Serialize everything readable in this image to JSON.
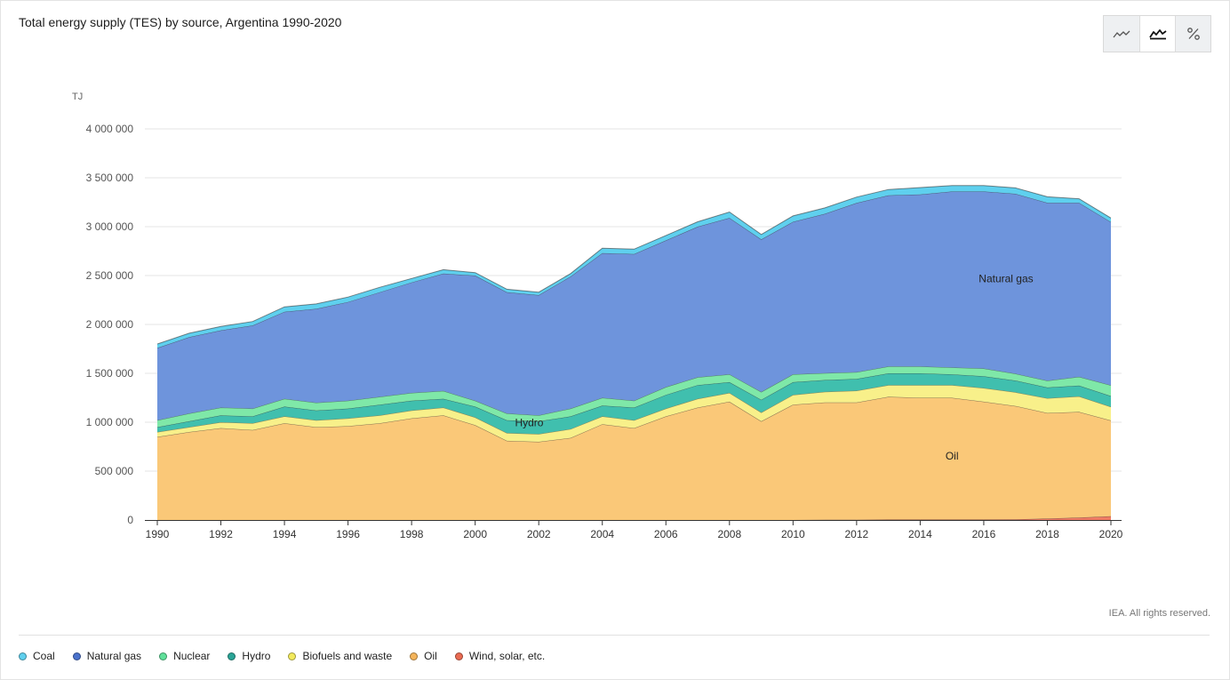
{
  "header": {
    "title": "Total energy supply (TES) by source, Argentina 1990-2020",
    "view_toggles": [
      {
        "icon": "line-chart-icon",
        "active": false
      },
      {
        "icon": "area-chart-icon",
        "active": true
      },
      {
        "icon": "percent-icon",
        "active": false
      }
    ]
  },
  "footer": {
    "credit": "IEA. All rights reserved."
  },
  "chart_data": {
    "type": "area",
    "stacked": true,
    "ylabel": "TJ",
    "ylim": [
      0,
      4000000
    ],
    "yticks": [
      0,
      500000,
      1000000,
      1500000,
      2000000,
      2500000,
      3000000,
      3500000,
      4000000
    ],
    "ytick_labels": [
      "0",
      "500 000",
      "1 000 000",
      "1 500 000",
      "2 000 000",
      "2 500 000",
      "3 000 000",
      "3 500 000",
      "4 000 000"
    ],
    "grid": true,
    "x": [
      1990,
      1991,
      1992,
      1993,
      1994,
      1995,
      1996,
      1997,
      1998,
      1999,
      2000,
      2001,
      2002,
      2003,
      2004,
      2005,
      2006,
      2007,
      2008,
      2009,
      2010,
      2011,
      2012,
      2013,
      2014,
      2015,
      2016,
      2017,
      2018,
      2019,
      2020
    ],
    "xticks": [
      1990,
      1992,
      1994,
      1996,
      1998,
      2000,
      2002,
      2004,
      2006,
      2008,
      2010,
      2012,
      2014,
      2016,
      2018,
      2020
    ],
    "xtick_labels": [
      "1990",
      "1992",
      "1994",
      "1996",
      "1998",
      "2000",
      "2002",
      "2004",
      "2006",
      "2008",
      "2010",
      "2012",
      "2014",
      "2016",
      "2018",
      "2020"
    ],
    "stack_order": [
      "Wind, solar, etc.",
      "Oil",
      "Biofuels and waste",
      "Hydro",
      "Nuclear",
      "Natural gas",
      "Coal"
    ],
    "series": [
      {
        "name": "Coal",
        "color": "#5fd0ee",
        "values": [
          40000,
          40000,
          40000,
          40000,
          50000,
          50000,
          50000,
          50000,
          40000,
          40000,
          30000,
          30000,
          30000,
          30000,
          50000,
          50000,
          50000,
          50000,
          60000,
          50000,
          60000,
          60000,
          60000,
          60000,
          70000,
          60000,
          60000,
          60000,
          60000,
          40000,
          40000
        ]
      },
      {
        "name": "Natural gas",
        "color": "#6e94dc",
        "values": [
          740000,
          780000,
          790000,
          850000,
          890000,
          960000,
          1010000,
          1070000,
          1130000,
          1200000,
          1280000,
          1240000,
          1230000,
          1350000,
          1480000,
          1500000,
          1500000,
          1540000,
          1600000,
          1560000,
          1560000,
          1630000,
          1730000,
          1750000,
          1760000,
          1800000,
          1810000,
          1840000,
          1820000,
          1780000,
          1670000
        ]
      },
      {
        "name": "Nuclear",
        "color": "#7fe8a8",
        "values": [
          70000,
          80000,
          80000,
          80000,
          80000,
          80000,
          80000,
          80000,
          80000,
          80000,
          60000,
          70000,
          60000,
          80000,
          80000,
          70000,
          80000,
          80000,
          80000,
          80000,
          80000,
          70000,
          70000,
          70000,
          70000,
          70000,
          80000,
          70000,
          70000,
          90000,
          110000
        ]
      },
      {
        "name": "Hydro",
        "color": "#40bfae",
        "values": [
          50000,
          60000,
          70000,
          70000,
          100000,
          100000,
          100000,
          110000,
          100000,
          90000,
          110000,
          130000,
          130000,
          130000,
          110000,
          130000,
          140000,
          140000,
          110000,
          130000,
          130000,
          120000,
          120000,
          120000,
          120000,
          110000,
          120000,
          120000,
          110000,
          110000,
          110000
        ]
      },
      {
        "name": "Biofuels and waste",
        "color": "#f8f08a",
        "values": [
          50000,
          50000,
          60000,
          70000,
          70000,
          70000,
          80000,
          80000,
          80000,
          80000,
          80000,
          80000,
          80000,
          90000,
          80000,
          80000,
          80000,
          90000,
          90000,
          90000,
          100000,
          110000,
          120000,
          120000,
          130000,
          130000,
          140000,
          140000,
          150000,
          160000,
          140000
        ]
      },
      {
        "name": "Oil",
        "color": "#fac878",
        "values": [
          850000,
          900000,
          940000,
          920000,
          990000,
          950000,
          960000,
          990000,
          1040000,
          1070000,
          970000,
          810000,
          800000,
          840000,
          980000,
          940000,
          1060000,
          1150000,
          1210000,
          1010000,
          1180000,
          1200000,
          1200000,
          1255000,
          1245000,
          1245000,
          1205000,
          1160000,
          1080000,
          1080000,
          980000
        ]
      },
      {
        "name": "Wind, solar, etc.",
        "color": "#f07c65",
        "values": [
          0,
          0,
          0,
          0,
          0,
          0,
          0,
          0,
          0,
          0,
          0,
          0,
          0,
          0,
          0,
          0,
          0,
          0,
          0,
          0,
          0,
          2000,
          3000,
          5000,
          5000,
          5000,
          5000,
          6000,
          15000,
          25000,
          38000
        ]
      }
    ],
    "annotations": [
      {
        "text": "Natural gas",
        "x": 2016.7,
        "y": 2430000
      },
      {
        "text": "Oil",
        "x": 2015,
        "y": 620000
      },
      {
        "text": "Hydro",
        "x": 2001.7,
        "y": 960000
      }
    ],
    "legend": {
      "position": "bottom-left",
      "items": [
        {
          "label": "Coal",
          "color": "#5fd0ee"
        },
        {
          "label": "Natural gas",
          "color": "#4a72cc"
        },
        {
          "label": "Nuclear",
          "color": "#5fe09a"
        },
        {
          "label": "Hydro",
          "color": "#2aa597"
        },
        {
          "label": "Biofuels and waste",
          "color": "#f3ea5c"
        },
        {
          "label": "Oil",
          "color": "#f4b45a"
        },
        {
          "label": "Wind, solar, etc.",
          "color": "#ea6b52"
        }
      ]
    }
  }
}
